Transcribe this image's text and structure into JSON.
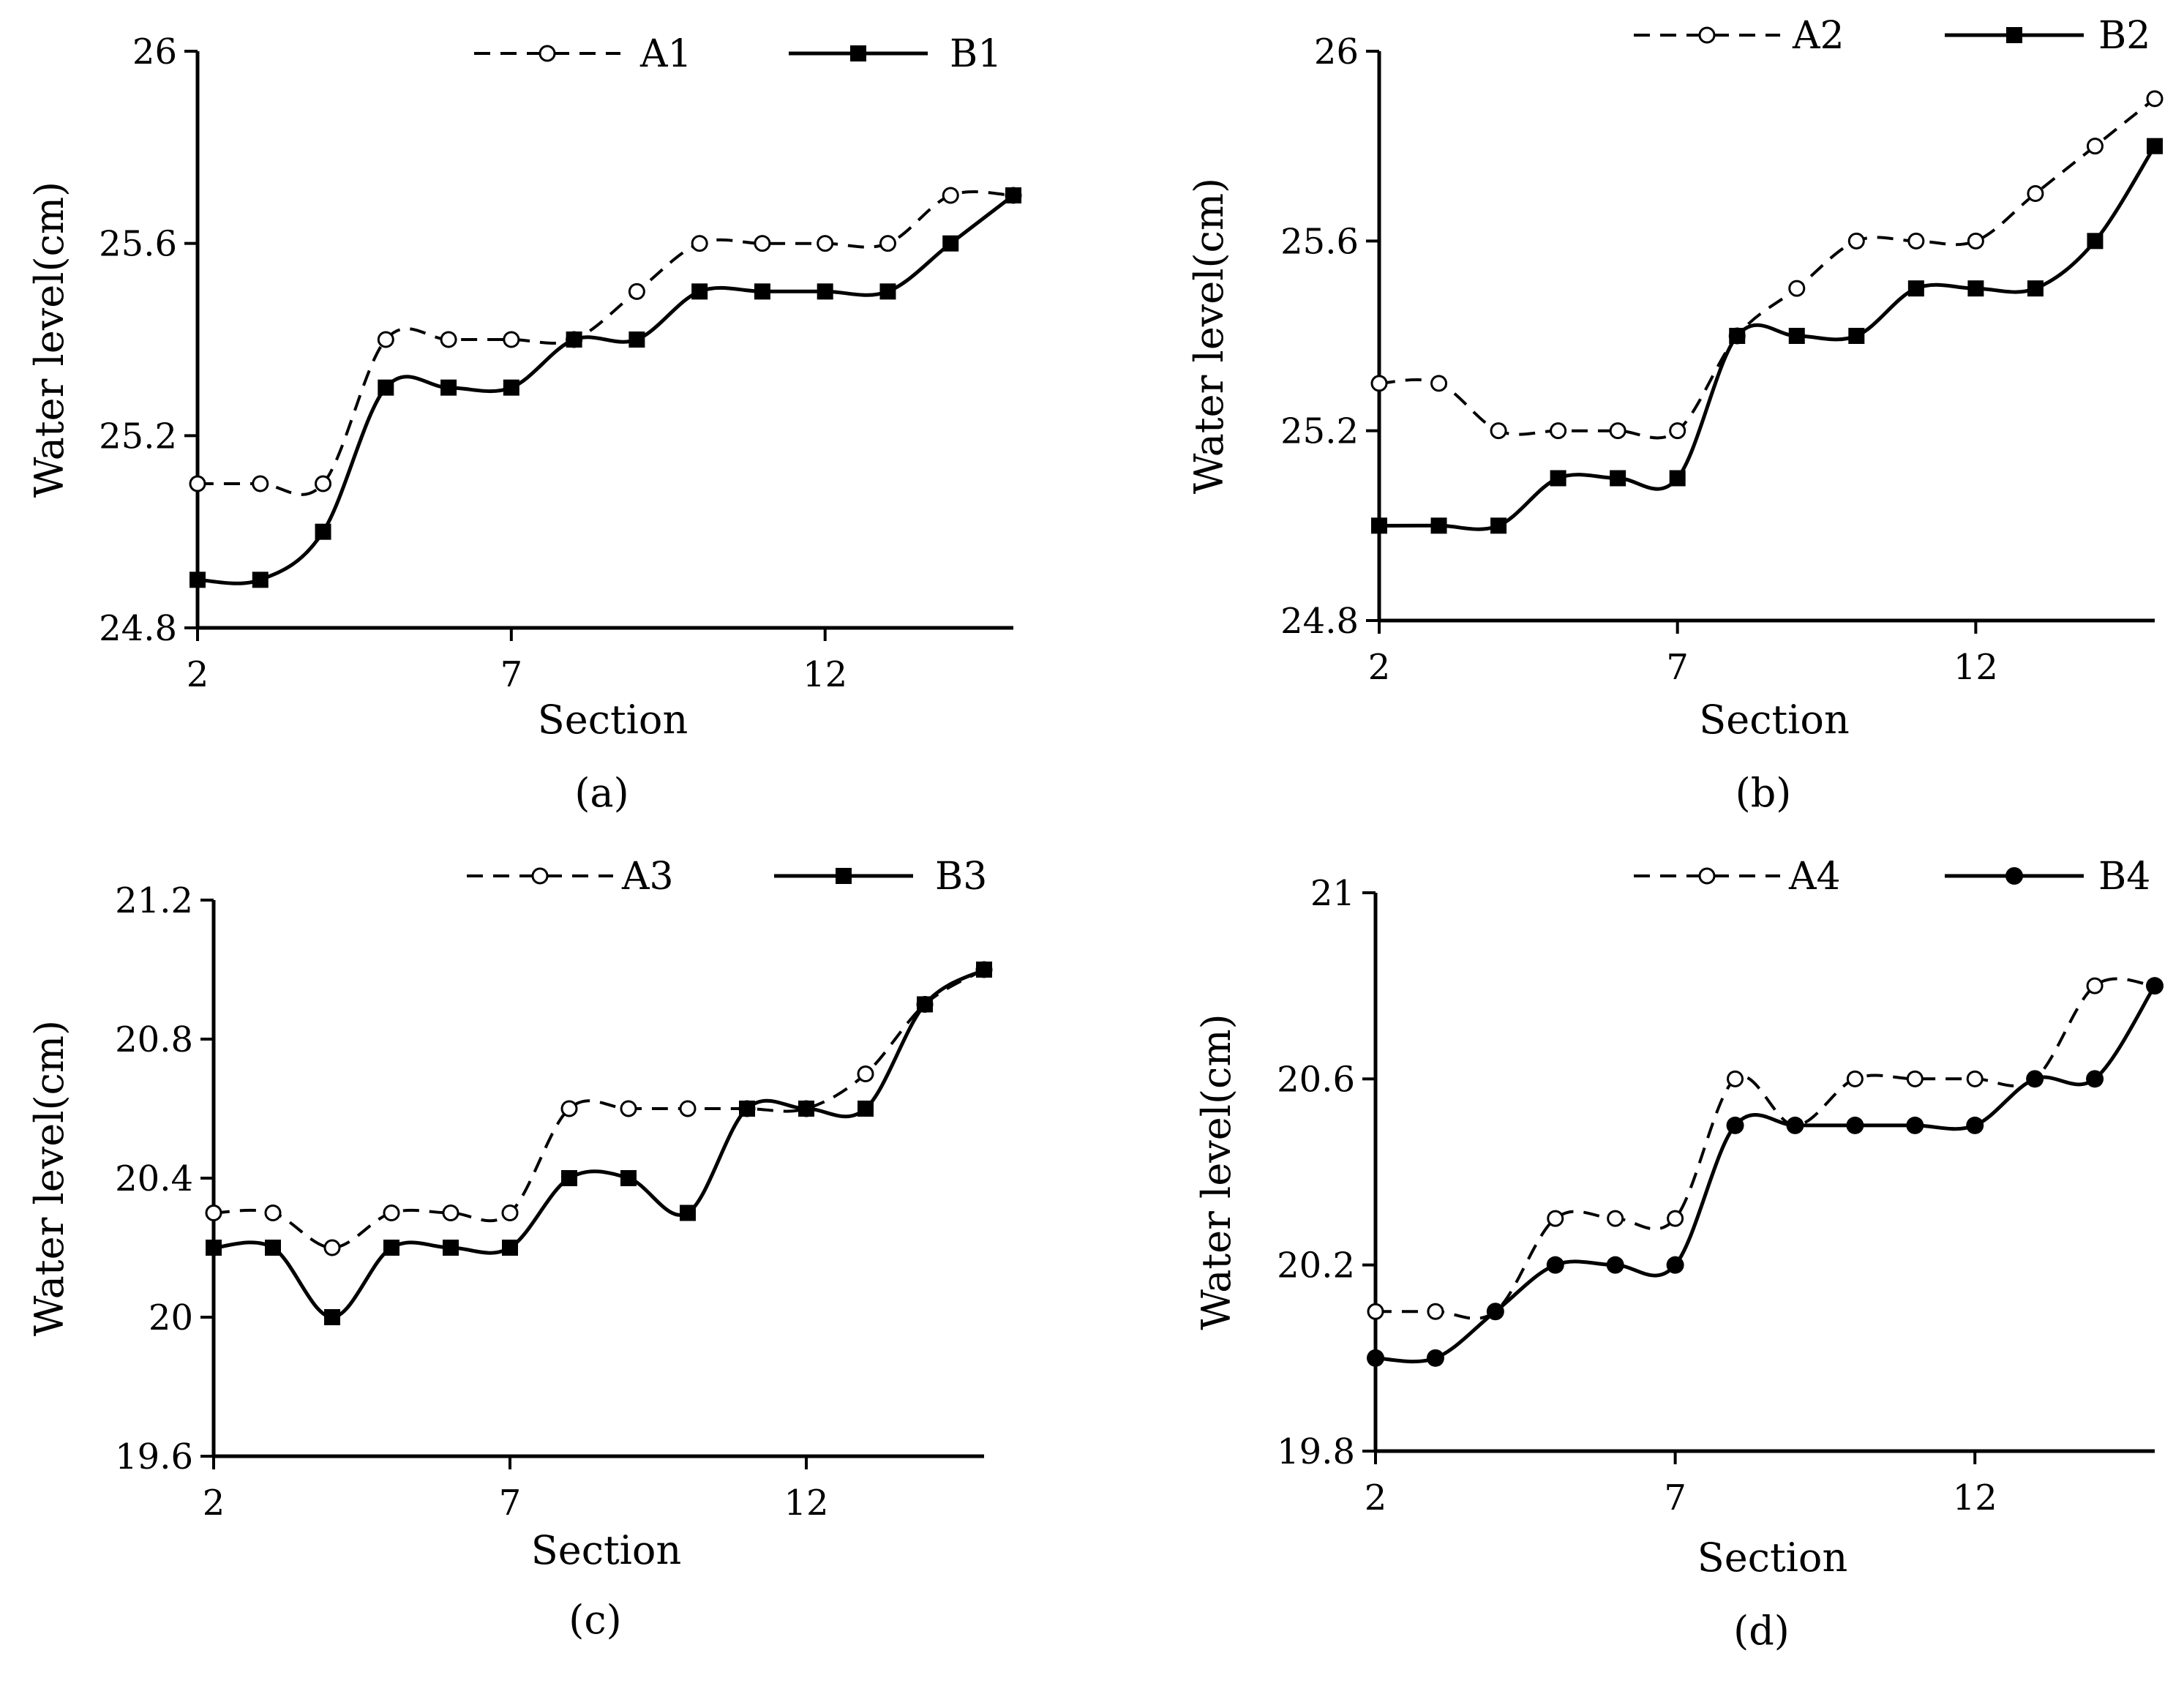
{
  "colors": {
    "line": "#000000",
    "background": "#ffffff",
    "open_marker_fill": "#ffffff"
  },
  "chart_data": [
    {
      "type": "line",
      "caption": "(a)",
      "xlabel": "Section",
      "ylabel": "Water level(cm)",
      "xlim": [
        2,
        15
      ],
      "ylim": [
        24.8,
        26
      ],
      "xticks": [
        2,
        7,
        12
      ],
      "xtick_labels": [
        "2",
        "7",
        "12"
      ],
      "yticks": [
        24.8,
        25.2,
        25.6,
        26
      ],
      "ytick_labels": [
        "24.8",
        "25.2",
        "25.6",
        "26"
      ],
      "x": [
        2,
        3,
        4,
        5,
        6,
        7,
        8,
        9,
        10,
        11,
        12,
        13,
        14,
        15
      ],
      "series": [
        {
          "name": "A1",
          "style": "dashed",
          "marker": "open-circle",
          "values": [
            25.1,
            25.1,
            25.1,
            25.4,
            25.4,
            25.4,
            25.4,
            25.5,
            25.6,
            25.6,
            25.6,
            25.6,
            25.7,
            25.7
          ]
        },
        {
          "name": "B1",
          "style": "solid",
          "marker": "filled-square",
          "values": [
            24.9,
            24.9,
            25.0,
            25.3,
            25.3,
            25.3,
            25.4,
            25.4,
            25.5,
            25.5,
            25.5,
            25.5,
            25.6,
            25.7
          ]
        }
      ]
    },
    {
      "type": "line",
      "caption": "(b)",
      "xlabel": "Section",
      "ylabel": "Water level(cm)",
      "xlim": [
        2,
        15
      ],
      "ylim": [
        24.8,
        26
      ],
      "xticks": [
        2,
        7,
        12
      ],
      "xtick_labels": [
        "2",
        "7",
        "12"
      ],
      "yticks": [
        24.8,
        25.2,
        25.6,
        26
      ],
      "ytick_labels": [
        "24.8",
        "25.2",
        "25.6",
        "26"
      ],
      "x": [
        2,
        3,
        4,
        5,
        6,
        7,
        8,
        9,
        10,
        11,
        12,
        13,
        14,
        15
      ],
      "series": [
        {
          "name": "A2",
          "style": "dashed",
          "marker": "open-circle",
          "values": [
            25.3,
            25.3,
            25.2,
            25.2,
            25.2,
            25.2,
            25.4,
            25.5,
            25.6,
            25.6,
            25.6,
            25.7,
            25.8,
            25.9
          ]
        },
        {
          "name": "B2",
          "style": "solid",
          "marker": "filled-square",
          "values": [
            25.0,
            25.0,
            25.0,
            25.1,
            25.1,
            25.1,
            25.4,
            25.4,
            25.4,
            25.5,
            25.5,
            25.5,
            25.6,
            25.8
          ]
        }
      ]
    },
    {
      "type": "line",
      "caption": "(c)",
      "xlabel": "Section",
      "ylabel": "Water level(cm)",
      "xlim": [
        2,
        15
      ],
      "ylim": [
        19.6,
        21.2
      ],
      "xticks": [
        2,
        7,
        12
      ],
      "xtick_labels": [
        "2",
        "7",
        "12"
      ],
      "yticks": [
        19.6,
        20,
        20.4,
        20.8,
        21.2
      ],
      "ytick_labels": [
        "19.6",
        "20",
        "20.4",
        "20.8",
        "21.2"
      ],
      "x": [
        2,
        3,
        4,
        5,
        6,
        7,
        8,
        9,
        10,
        11,
        12,
        13,
        14,
        15
      ],
      "series": [
        {
          "name": "A3",
          "style": "dashed",
          "marker": "open-circle",
          "values": [
            20.3,
            20.3,
            20.2,
            20.3,
            20.3,
            20.3,
            20.6,
            20.6,
            20.6,
            20.6,
            20.6,
            20.7,
            20.9,
            21.0
          ]
        },
        {
          "name": "B3",
          "style": "solid",
          "marker": "filled-square",
          "values": [
            20.2,
            20.2,
            20.0,
            20.2,
            20.2,
            20.2,
            20.4,
            20.4,
            20.3,
            20.6,
            20.6,
            20.6,
            20.9,
            21.0
          ]
        }
      ]
    },
    {
      "type": "line",
      "caption": "(d)",
      "xlabel": "Section",
      "ylabel": "Water level(cm)",
      "xlim": [
        2,
        15
      ],
      "ylim": [
        19.8,
        21
      ],
      "xticks": [
        2,
        7,
        12
      ],
      "xtick_labels": [
        "2",
        "7",
        "12"
      ],
      "yticks": [
        19.8,
        20.2,
        20.6,
        21
      ],
      "ytick_labels": [
        "19.8",
        "20.2",
        "20.6",
        "21"
      ],
      "x": [
        2,
        3,
        4,
        5,
        6,
        7,
        8,
        9,
        10,
        11,
        12,
        13,
        14,
        15
      ],
      "series": [
        {
          "name": "A4",
          "style": "dashed",
          "marker": "open-circle",
          "values": [
            20.1,
            20.1,
            20.1,
            20.3,
            20.3,
            20.3,
            20.6,
            20.5,
            20.6,
            20.6,
            20.6,
            20.6,
            20.8,
            20.8
          ]
        },
        {
          "name": "B4",
          "style": "solid",
          "marker": "filled-circle",
          "values": [
            20.0,
            20.0,
            20.1,
            20.2,
            20.2,
            20.2,
            20.5,
            20.5,
            20.5,
            20.5,
            20.5,
            20.6,
            20.6,
            20.8
          ]
        }
      ]
    }
  ]
}
